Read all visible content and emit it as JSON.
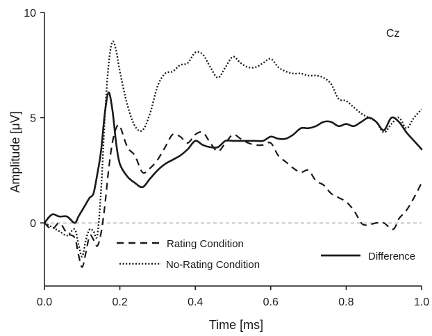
{
  "chart_data": {
    "type": "line",
    "title": "",
    "xlabel": "Time [ms]",
    "ylabel": "Amplitude [μV]",
    "xlim": [
      0.0,
      1.0
    ],
    "ylim": [
      -3,
      10
    ],
    "x_ticks": [
      0.0,
      0.2,
      0.4,
      0.6,
      0.8,
      1.0
    ],
    "x_tick_labels": [
      "0.0",
      "0.2",
      "0.4",
      "0.6",
      "0.8",
      "1.0"
    ],
    "y_ticks": [
      0,
      5,
      10
    ],
    "y_tick_labels": [
      "0",
      "5",
      "10"
    ],
    "grid": false,
    "zero_line": true,
    "annotation": "Cz",
    "legend_placement": "bottom",
    "series": [
      {
        "name": "Rating Condition",
        "style": "dashed",
        "color": "#1a1a1a",
        "x": [
          0.0,
          0.02,
          0.04,
          0.06,
          0.08,
          0.09,
          0.1,
          0.11,
          0.12,
          0.13,
          0.14,
          0.15,
          0.16,
          0.17,
          0.18,
          0.19,
          0.2,
          0.22,
          0.24,
          0.26,
          0.28,
          0.3,
          0.32,
          0.34,
          0.36,
          0.38,
          0.4,
          0.42,
          0.44,
          0.46,
          0.48,
          0.5,
          0.52,
          0.54,
          0.56,
          0.58,
          0.6,
          0.62,
          0.64,
          0.66,
          0.68,
          0.7,
          0.72,
          0.74,
          0.76,
          0.78,
          0.8,
          0.82,
          0.84,
          0.85,
          0.86,
          0.88,
          0.9,
          0.92,
          0.93,
          0.94,
          0.96,
          0.98,
          1.0
        ],
        "y": [
          0.0,
          -0.3,
          0.0,
          -0.5,
          -0.7,
          -1.5,
          -2.1,
          -1.4,
          -0.6,
          -0.8,
          -1.1,
          -0.5,
          0.8,
          2.5,
          3.8,
          4.5,
          4.6,
          3.6,
          3.2,
          2.4,
          2.6,
          3.0,
          3.6,
          4.2,
          4.1,
          3.8,
          4.2,
          4.3,
          3.8,
          3.4,
          3.8,
          4.2,
          4.0,
          3.8,
          3.7,
          3.7,
          3.8,
          3.2,
          2.9,
          2.6,
          2.4,
          2.5,
          2.0,
          1.8,
          1.4,
          1.2,
          1.0,
          0.6,
          0.0,
          -0.1,
          -0.1,
          0.0,
          0.0,
          -0.3,
          -0.2,
          0.2,
          0.6,
          1.2,
          1.9
        ]
      },
      {
        "name": "No-Rating Condition",
        "style": "dotted",
        "color": "#1a1a1a",
        "x": [
          0.0,
          0.02,
          0.04,
          0.06,
          0.08,
          0.09,
          0.1,
          0.11,
          0.12,
          0.13,
          0.14,
          0.15,
          0.16,
          0.17,
          0.18,
          0.19,
          0.2,
          0.22,
          0.24,
          0.26,
          0.28,
          0.3,
          0.32,
          0.34,
          0.36,
          0.38,
          0.4,
          0.42,
          0.44,
          0.46,
          0.48,
          0.5,
          0.52,
          0.54,
          0.56,
          0.58,
          0.6,
          0.62,
          0.64,
          0.66,
          0.68,
          0.7,
          0.72,
          0.74,
          0.76,
          0.78,
          0.8,
          0.82,
          0.84,
          0.86,
          0.88,
          0.9,
          0.92,
          0.94,
          0.96,
          0.98,
          1.0
        ],
        "y": [
          0.0,
          -0.2,
          -0.4,
          -0.6,
          -0.3,
          -1.0,
          -1.6,
          -0.8,
          -0.3,
          -0.4,
          -0.6,
          1.5,
          5.0,
          7.5,
          8.6,
          8.2,
          7.2,
          5.6,
          4.6,
          4.4,
          5.2,
          6.5,
          7.1,
          7.2,
          7.5,
          7.6,
          8.1,
          8.0,
          7.4,
          6.9,
          7.4,
          7.9,
          7.6,
          7.4,
          7.4,
          7.6,
          7.8,
          7.4,
          7.2,
          7.1,
          7.1,
          7.0,
          7.0,
          6.9,
          6.6,
          5.9,
          5.8,
          5.5,
          5.2,
          5.0,
          4.8,
          4.3,
          4.7,
          5.0,
          4.5,
          5.0,
          5.4
        ]
      },
      {
        "name": "Difference",
        "style": "solid",
        "color": "#1a1a1a",
        "x": [
          0.0,
          0.02,
          0.04,
          0.06,
          0.08,
          0.09,
          0.1,
          0.11,
          0.12,
          0.13,
          0.14,
          0.15,
          0.16,
          0.17,
          0.18,
          0.19,
          0.2,
          0.22,
          0.24,
          0.26,
          0.28,
          0.3,
          0.32,
          0.34,
          0.36,
          0.38,
          0.4,
          0.42,
          0.44,
          0.46,
          0.48,
          0.5,
          0.52,
          0.54,
          0.56,
          0.58,
          0.6,
          0.62,
          0.64,
          0.66,
          0.68,
          0.7,
          0.72,
          0.74,
          0.76,
          0.78,
          0.8,
          0.82,
          0.84,
          0.86,
          0.88,
          0.9,
          0.92,
          0.94,
          0.96,
          0.98,
          1.0
        ],
        "y": [
          0.0,
          0.4,
          0.3,
          0.3,
          0.0,
          0.3,
          0.6,
          0.9,
          1.2,
          1.4,
          2.3,
          3.4,
          5.2,
          6.2,
          5.4,
          3.8,
          2.8,
          2.2,
          1.9,
          1.7,
          2.1,
          2.5,
          2.8,
          3.0,
          3.2,
          3.5,
          3.9,
          3.7,
          3.6,
          3.6,
          3.9,
          3.9,
          3.9,
          3.9,
          3.9,
          3.9,
          4.1,
          4.0,
          4.0,
          4.2,
          4.5,
          4.5,
          4.6,
          4.8,
          4.8,
          4.6,
          4.7,
          4.6,
          4.8,
          5.0,
          4.8,
          4.4,
          5.0,
          4.8,
          4.3,
          3.9,
          3.5
        ]
      }
    ]
  }
}
